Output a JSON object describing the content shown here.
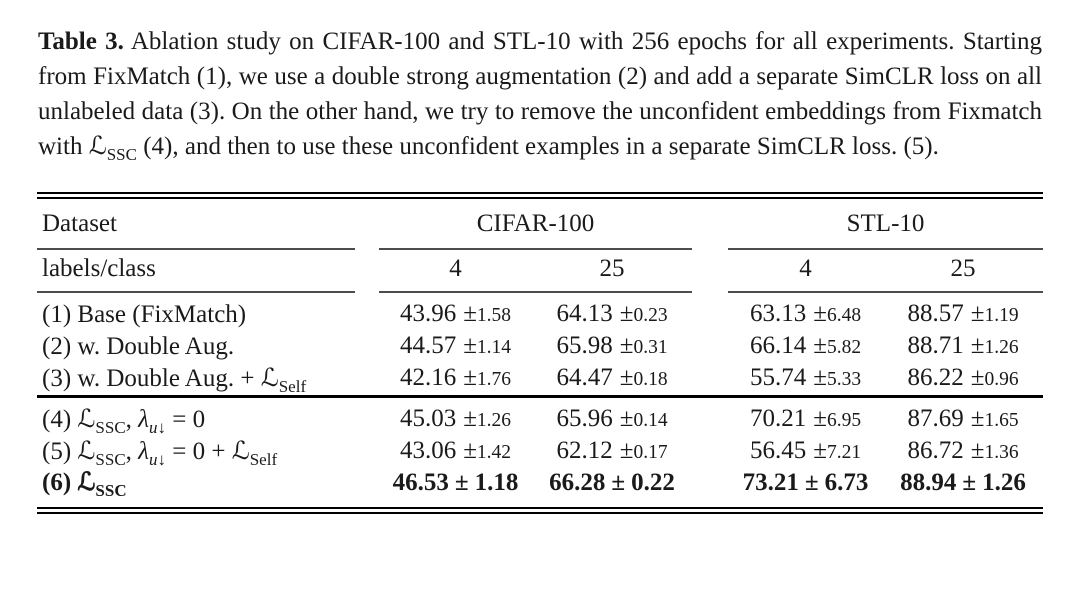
{
  "caption": {
    "segments": [
      {
        "t": "Table 3.",
        "b": true
      },
      {
        "t": " Ablation study on CIFAR-100 and STL-10 with 256 epochs for all experiments. Starting from FixMatch (1), we use a double strong augmentation (2) and add a separate SimCLR loss on all unlabeled data (3). On the other hand, we try to remove the unconfident embeddings from Fixmatch with "
      },
      {
        "t": "ℒ"
      },
      {
        "t": "SSC",
        "sub": true
      },
      {
        "t": " (4), and then to use these unconfident examples in a separate SimCLR loss. (5)."
      }
    ]
  },
  "table": {
    "pm": "±",
    "col_header_row": {
      "dataset": "Dataset",
      "cifar": "CIFAR-100",
      "stl": "STL-10"
    },
    "sub_header_row": {
      "label": "labels/class",
      "cols": [
        "4",
        "25",
        "4",
        "25"
      ]
    },
    "rows": [
      {
        "label": [
          {
            "t": "(1) Base (FixMatch)"
          }
        ],
        "cells": [
          {
            "mean": "43.96",
            "std": "1.58"
          },
          {
            "mean": "64.13",
            "std": "0.23"
          },
          {
            "mean": "63.13",
            "std": "6.48"
          },
          {
            "mean": "88.57",
            "std": "1.19"
          }
        ]
      },
      {
        "label": [
          {
            "t": "(2) w. Double Aug."
          }
        ],
        "cells": [
          {
            "mean": "44.57",
            "std": "1.14"
          },
          {
            "mean": "65.98",
            "std": "0.31"
          },
          {
            "mean": "66.14",
            "std": "5.82"
          },
          {
            "mean": "88.71",
            "std": "1.26"
          }
        ]
      },
      {
        "label": [
          {
            "t": "(3) w. Double Aug. + "
          },
          {
            "t": "ℒ"
          },
          {
            "t": "Self",
            "sub": true
          }
        ],
        "cells": [
          {
            "mean": "42.16",
            "std": "1.76"
          },
          {
            "mean": "64.47",
            "std": "0.18"
          },
          {
            "mean": "55.74",
            "std": "5.33"
          },
          {
            "mean": "86.22",
            "std": "0.96"
          }
        ]
      },
      {
        "label": [
          {
            "t": "(4) "
          },
          {
            "t": "ℒ"
          },
          {
            "t": "SSC",
            "sub": true
          },
          {
            "t": ", "
          },
          {
            "t": "λ",
            "i": true
          },
          {
            "t": "u↓",
            "sub": true,
            "i": true
          },
          {
            "t": " = 0"
          }
        ],
        "cells": [
          {
            "mean": "45.03",
            "std": "1.26"
          },
          {
            "mean": "65.96",
            "std": "0.14"
          },
          {
            "mean": "70.21",
            "std": "6.95"
          },
          {
            "mean": "87.69",
            "std": "1.65"
          }
        ]
      },
      {
        "label": [
          {
            "t": "(5) "
          },
          {
            "t": "ℒ"
          },
          {
            "t": "SSC",
            "sub": true
          },
          {
            "t": ", "
          },
          {
            "t": "λ",
            "i": true
          },
          {
            "t": "u↓",
            "sub": true,
            "i": true
          },
          {
            "t": " = 0 + "
          },
          {
            "t": "ℒ"
          },
          {
            "t": "Self",
            "sub": true
          }
        ],
        "cells": [
          {
            "mean": "43.06",
            "std": "1.42"
          },
          {
            "mean": "62.12",
            "std": "0.17"
          },
          {
            "mean": "56.45",
            "std": "7.21"
          },
          {
            "mean": "86.72",
            "std": "1.36"
          }
        ]
      },
      {
        "label": [
          {
            "t": "(6) "
          },
          {
            "t": "ℒ"
          },
          {
            "t": "SSC",
            "sub": true
          }
        ],
        "bold": true,
        "cells": [
          {
            "mean": "46.53",
            "std": "1.18"
          },
          {
            "mean": "66.28",
            "std": "0.22"
          },
          {
            "mean": "73.21",
            "std": "6.73"
          },
          {
            "mean": "88.94",
            "std": "1.26"
          }
        ]
      }
    ]
  }
}
